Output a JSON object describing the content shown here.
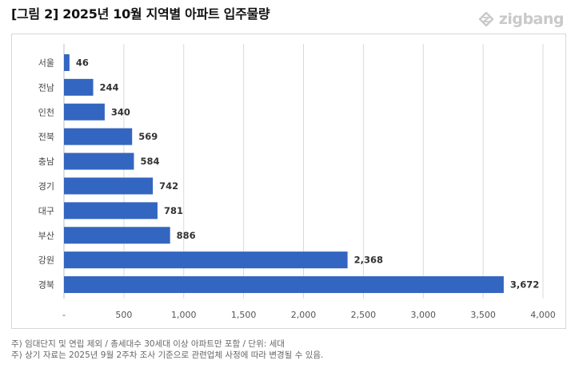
{
  "header": {
    "title": "[그림 2] 2025년 10월 지역별 아파트 입주물량",
    "logo_text": "zigbang",
    "logo_icon": "zigbang-logo-icon"
  },
  "notes": [
    "주) 임대단지 및 연립 제외 / 총세대수 30세대 이상 아파트만 포함 / 단위: 세대",
    "주) 상기 자료는 2025년 9월 2주차 조사 기준으로 관련업체 사정에 따라 변경될 수 있음."
  ],
  "colors": {
    "bar": "#3366c0",
    "grid": "#d9d9d9",
    "logo": "#c9c9c9"
  },
  "chart_data": {
    "type": "bar",
    "orientation": "horizontal",
    "title": "",
    "xlabel": "",
    "ylabel": "",
    "categories": [
      "서울",
      "전남",
      "인천",
      "전북",
      "충남",
      "경기",
      "대구",
      "부산",
      "강원",
      "경북"
    ],
    "values": [
      46,
      244,
      340,
      569,
      584,
      742,
      781,
      886,
      2368,
      3672
    ],
    "value_labels": [
      "46",
      "244",
      "340",
      "569",
      "584",
      "742",
      "781",
      "886",
      "2,368",
      "3,672"
    ],
    "xlim": [
      0,
      4000
    ],
    "x_ticks": [
      0,
      500,
      1000,
      1500,
      2000,
      2500,
      3000,
      3500,
      4000
    ],
    "x_tick_labels": [
      "-",
      "500",
      "1,000",
      "1,500",
      "2,000",
      "2,500",
      "3,000",
      "3,500",
      "4,000"
    ],
    "grid": "vertical"
  }
}
